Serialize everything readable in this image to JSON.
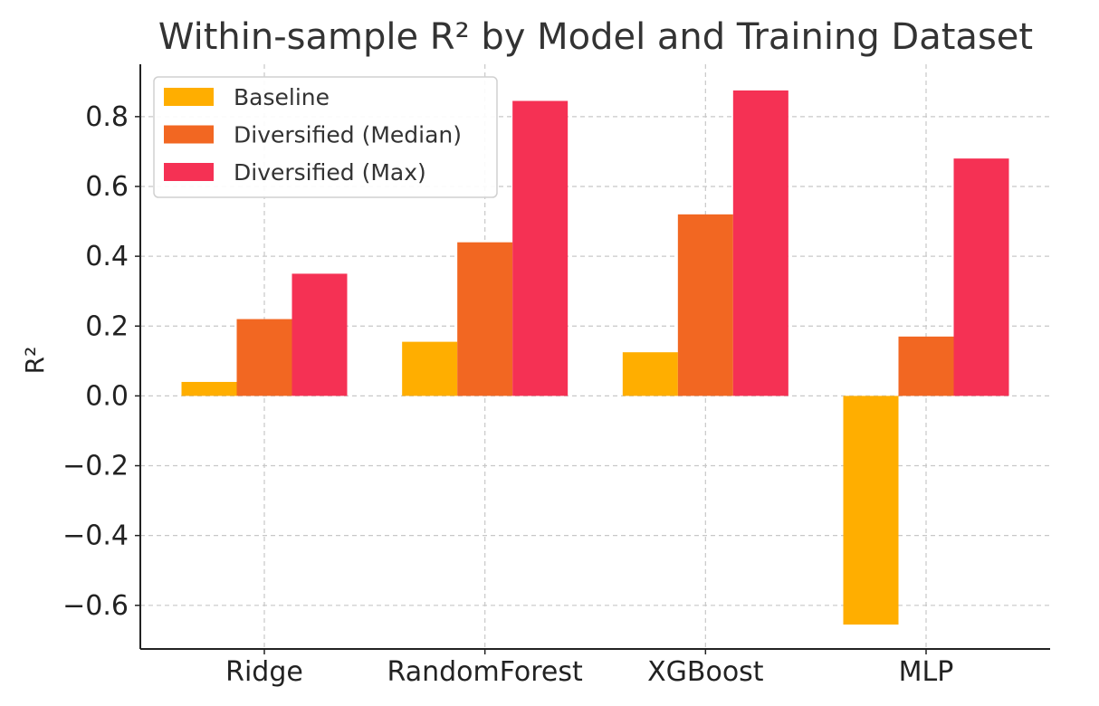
{
  "chart_data": {
    "type": "bar",
    "title": "Within-sample R² by Model and Training Dataset",
    "xlabel": "",
    "ylabel": "R²",
    "categories": [
      "Ridge",
      "RandomForest",
      "XGBoost",
      "MLP"
    ],
    "series": [
      {
        "name": "Baseline",
        "color": "#FFAE00",
        "values": [
          0.04,
          0.155,
          0.125,
          -0.655
        ]
      },
      {
        "name": "Diversified (Median)",
        "color": "#F26722",
        "values": [
          0.22,
          0.44,
          0.52,
          0.17
        ]
      },
      {
        "name": "Diversified (Max)",
        "color": "#F53154",
        "values": [
          0.35,
          0.845,
          0.875,
          0.68
        ]
      }
    ],
    "ylim": [
      -0.725,
      0.95
    ],
    "yticks": [
      -0.6,
      -0.4,
      -0.2,
      0.0,
      0.2,
      0.4,
      0.6,
      0.8
    ],
    "ytick_labels": [
      "−0.6",
      "−0.4",
      "−0.2",
      "0.0",
      "0.2",
      "0.4",
      "0.6",
      "0.8"
    ],
    "grid": true,
    "legend_position": "top-left"
  }
}
